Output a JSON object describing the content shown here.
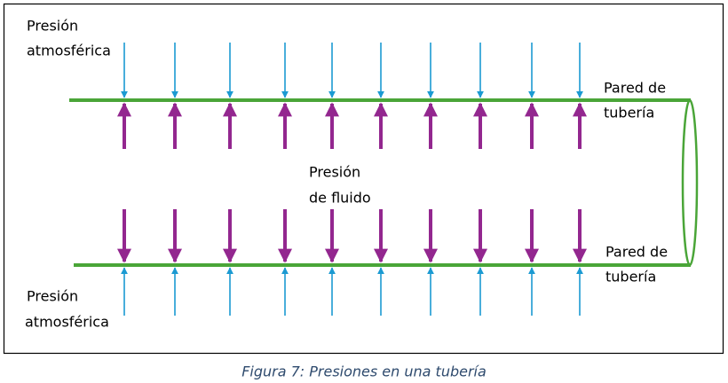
{
  "labels": {
    "top_left": [
      "Presión",
      "atmosférica"
    ],
    "top_right": [
      "Pared de",
      "tubería"
    ],
    "center": [
      "Presión",
      "de fluido"
    ],
    "bottom_right": [
      "Pared de",
      "tubería"
    ],
    "bottom_left": [
      "Presión",
      "atmosférica"
    ]
  },
  "caption": "Figura 7: Presiones en una tubería"
}
